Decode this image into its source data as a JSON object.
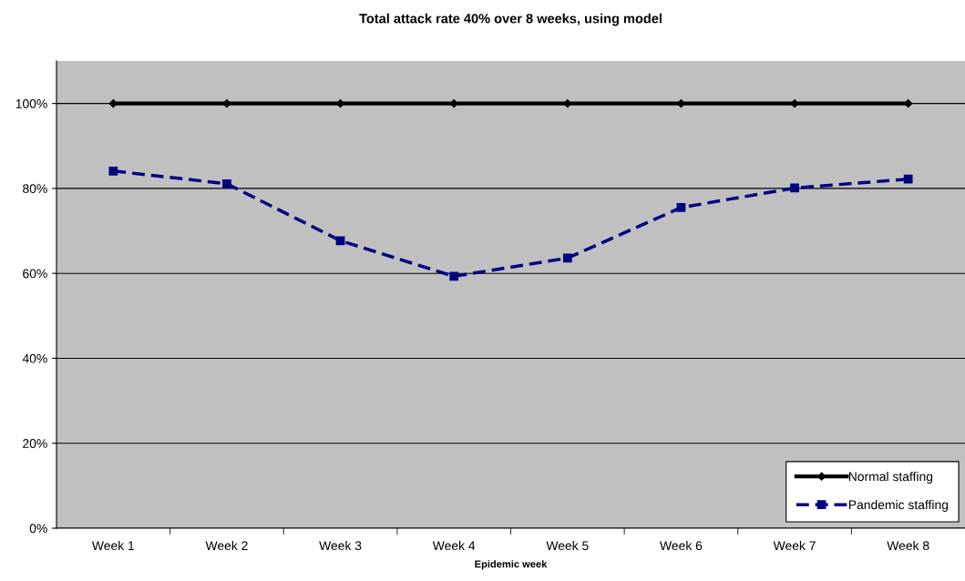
{
  "chart_data": {
    "type": "line",
    "title": "Total attack rate 40% over 8 weeks, using model",
    "xlabel": "Epidemic week",
    "categories": [
      "Week 1",
      "Week 2",
      "Week 3",
      "Week 4",
      "Week 5",
      "Week 6",
      "Week 7",
      "Week 8"
    ],
    "series": [
      {
        "name": "Normal staffing",
        "color": "#000000",
        "marker": "diamond",
        "line_style": "solid",
        "values": [
          100,
          100,
          100,
          100,
          100,
          100,
          100,
          100
        ]
      },
      {
        "name": "Pandemic staffing",
        "color": "#000080",
        "marker": "square",
        "line_style": "dashed",
        "values": [
          84.1,
          81.1,
          67.7,
          59.3,
          63.6,
          75.5,
          80.1,
          82.2
        ]
      }
    ],
    "ylim": [
      0,
      110
    ],
    "yticks": [
      {
        "value": 0,
        "label": "0%"
      },
      {
        "value": 20,
        "label": "20%"
      },
      {
        "value": 40,
        "label": "40%"
      },
      {
        "value": 60,
        "label": "60%"
      },
      {
        "value": 80,
        "label": "80%"
      },
      {
        "value": 100,
        "label": "100%"
      }
    ],
    "grid": "y",
    "legend": "bottom right"
  }
}
